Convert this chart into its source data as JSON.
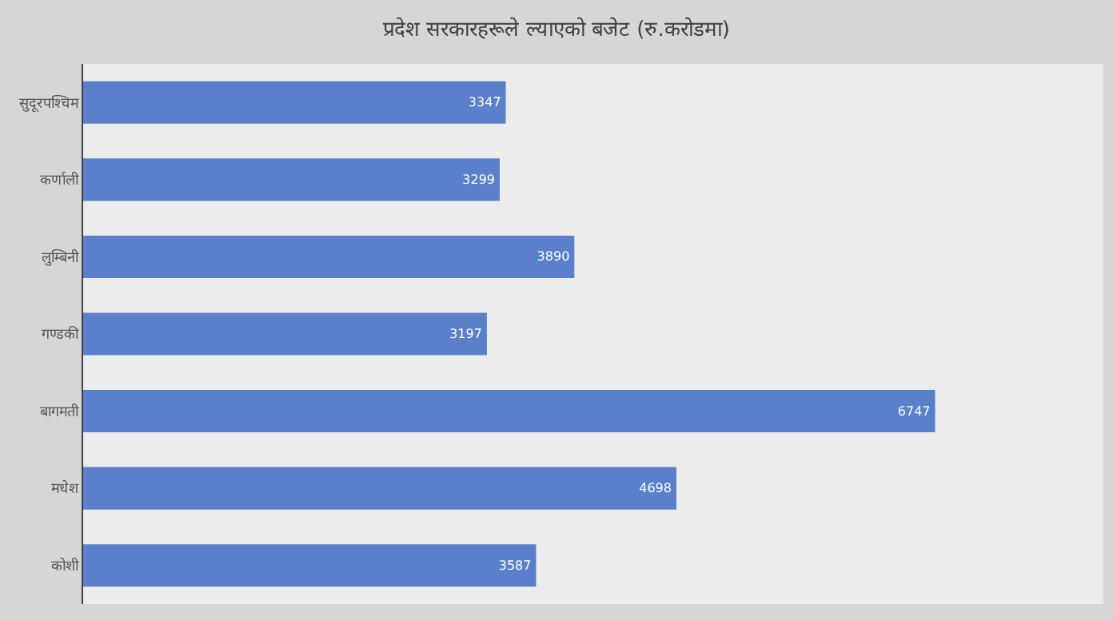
{
  "chart_data": {
    "type": "bar",
    "orientation": "horizontal",
    "title": "प्रदेश सरकारहरूले ल्याएको बजेट (रु.करोडमा)",
    "categories": [
      "सुदूरपश्चिम",
      "कर्णाली",
      "लुम्बिनी",
      "गण्डकी",
      "बागमती",
      "मधेश",
      "कोशी"
    ],
    "values": [
      3347,
      3299,
      3890,
      3197,
      6747,
      4698,
      3587
    ],
    "color": "#5a7fcb",
    "data_labels": true,
    "xlim": [
      0,
      8080
    ],
    "tick_labels": "y",
    "grid": false,
    "legend": false
  }
}
